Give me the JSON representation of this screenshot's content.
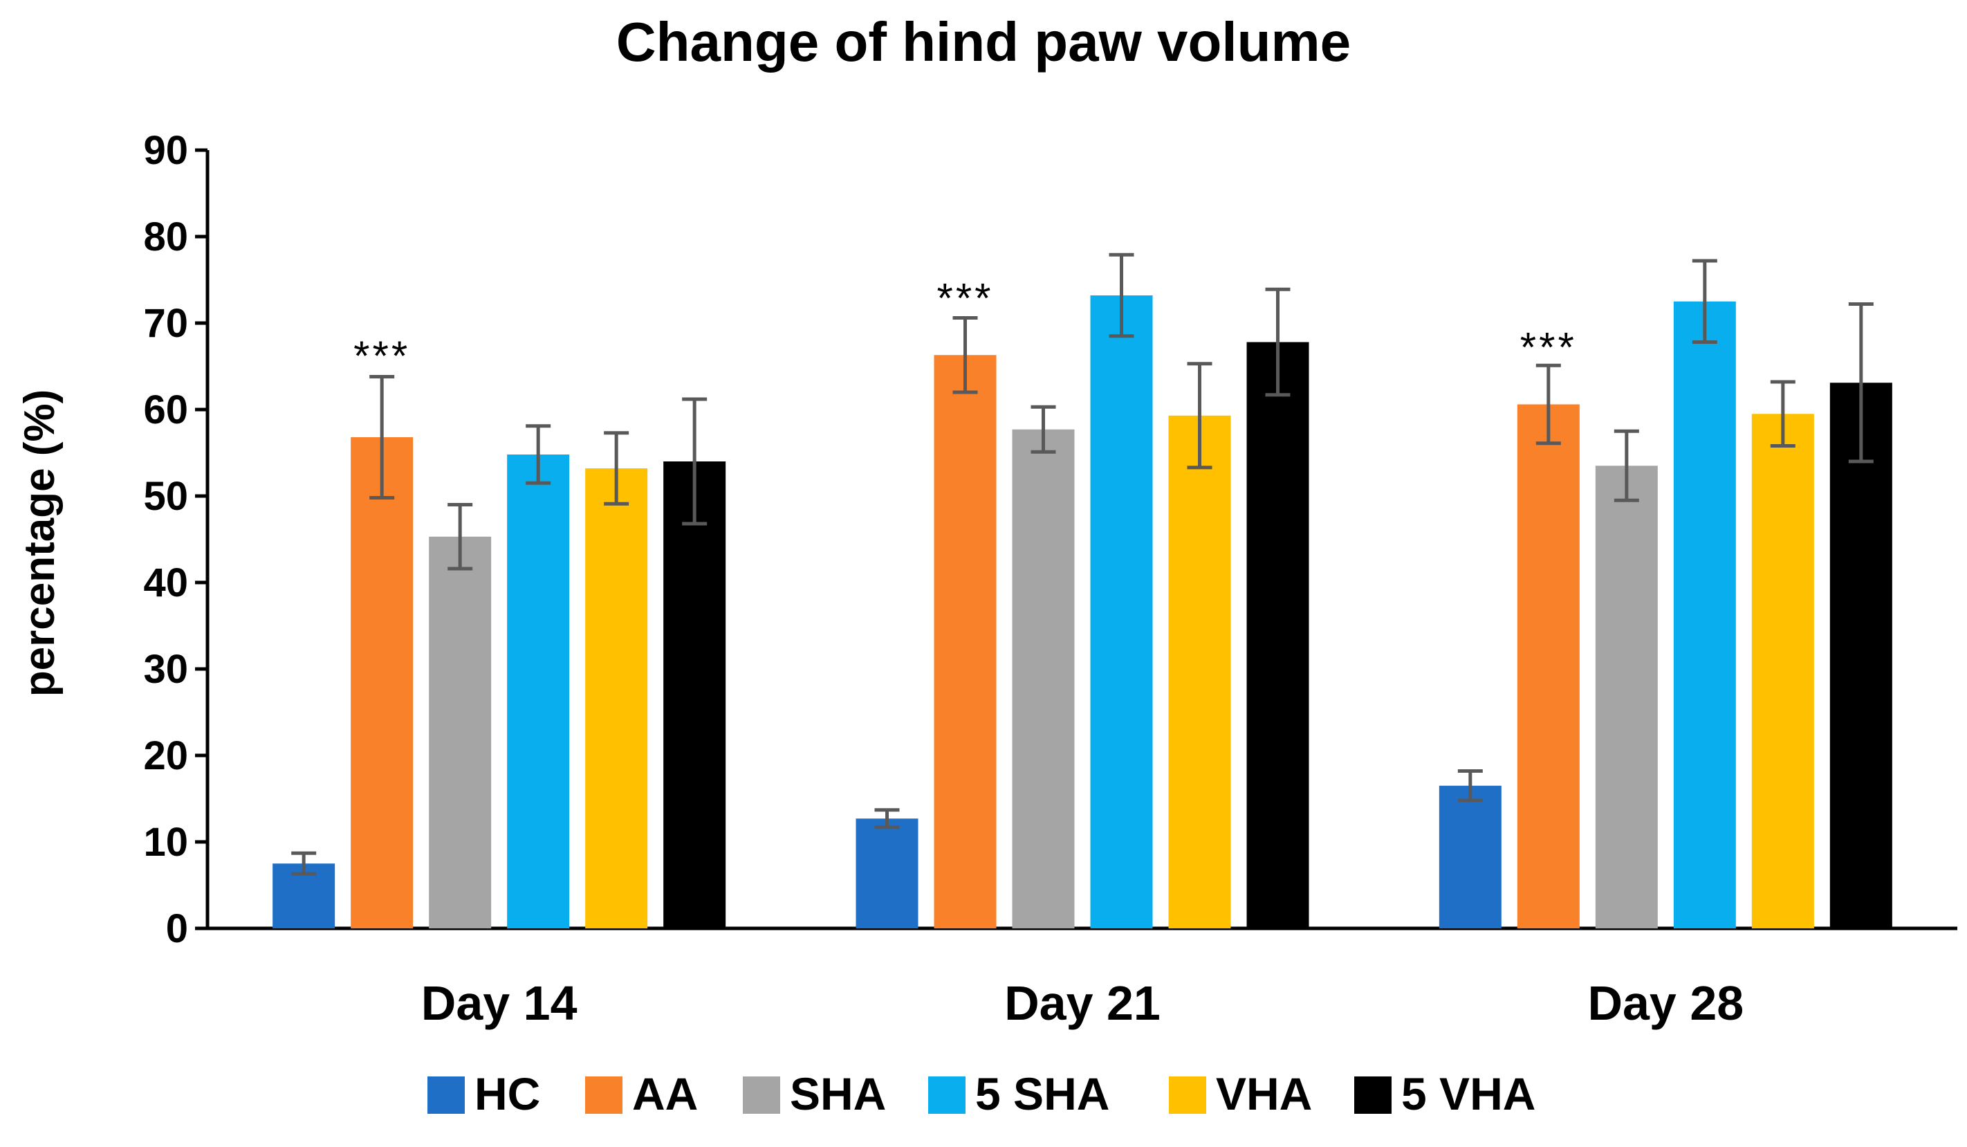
{
  "chart_data": {
    "type": "bar",
    "title": "Change of hind paw volume",
    "xlabel": "",
    "ylabel": "percentage (%)",
    "ylim": [
      0,
      90
    ],
    "yticks": [
      0,
      10,
      20,
      30,
      40,
      50,
      60,
      70,
      80,
      90
    ],
    "ytick_labels": [
      "0",
      "10",
      "20",
      "30",
      "40",
      "50",
      "60",
      "70",
      "80",
      "90"
    ],
    "grid": false,
    "legend_position": "bottom",
    "categories": [
      "Day 14",
      "Day 21",
      "Day 28"
    ],
    "series": [
      {
        "name": "HC",
        "color": "#1F6FC6",
        "values": [
          7.5,
          12.7,
          16.5
        ],
        "errors": [
          1.2,
          1.0,
          1.7
        ]
      },
      {
        "name": "AA",
        "color": "#F8812A",
        "values": [
          56.8,
          66.3,
          60.6
        ],
        "errors": [
          7.0,
          4.3,
          4.5
        ]
      },
      {
        "name": "SHA",
        "color": "#A5A5A5",
        "values": [
          45.3,
          57.7,
          53.5
        ],
        "errors": [
          3.7,
          2.6,
          4.0
        ]
      },
      {
        "name": "5 SHA",
        "color": "#09AEEF",
        "values": [
          54.8,
          73.2,
          72.5
        ],
        "errors": [
          3.3,
          4.7,
          4.7
        ]
      },
      {
        "name": "VHA",
        "color": "#FFC000",
        "values": [
          53.2,
          59.3,
          59.5
        ],
        "errors": [
          4.1,
          6.0,
          3.7
        ]
      },
      {
        "name": "5 VHA",
        "color": "#000000",
        "values": [
          54.0,
          67.8,
          63.1
        ],
        "errors": [
          7.2,
          6.1,
          9.1
        ]
      }
    ],
    "annotations": [
      {
        "text": "***",
        "category": "Day 14",
        "series": "AA",
        "y": 66.0
      },
      {
        "text": "***",
        "category": "Day 21",
        "series": "AA",
        "y": 72.7
      },
      {
        "text": "***",
        "category": "Day 28",
        "series": "AA",
        "y": 67.0
      }
    ],
    "error_bar_color": "#595959",
    "axis_color": "#000000"
  }
}
